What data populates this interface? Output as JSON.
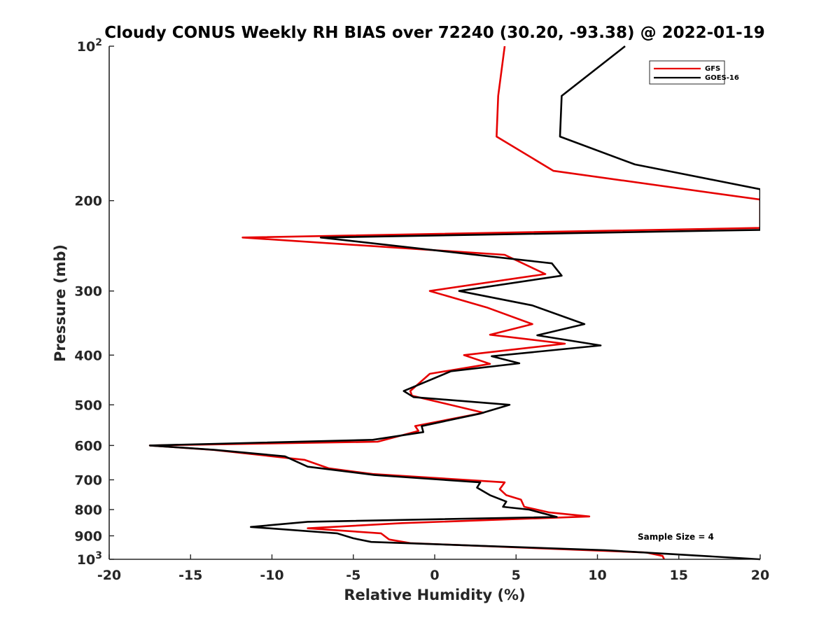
{
  "chart_data": {
    "type": "line",
    "title": "Cloudy CONUS Weekly RH BIAS over 72240 (30.20, -93.38) @ 2022-01-19",
    "xlabel": "Relative Humidity (%)",
    "ylabel": "Pressure (mb)",
    "xlim": [
      -20,
      20
    ],
    "ylim": [
      100,
      1000
    ],
    "yscale": "log",
    "y_reversed": true,
    "grid": false,
    "legend_position": "top-right",
    "x_ticks": [
      -20,
      -15,
      -10,
      -5,
      0,
      5,
      10,
      15,
      20
    ],
    "x_tick_labels": [
      "-20",
      "-15",
      "-10",
      "-5",
      "0",
      "5",
      "10",
      "15",
      "20"
    ],
    "y_ticks": [
      100,
      200,
      300,
      400,
      500,
      600,
      700,
      800,
      900,
      1000
    ],
    "y_tick_labels": [
      {
        "base": "10",
        "sup": "2"
      },
      {
        "base": "200",
        "sup": ""
      },
      {
        "base": "300",
        "sup": ""
      },
      {
        "base": "400",
        "sup": ""
      },
      {
        "base": "500",
        "sup": ""
      },
      {
        "base": "600",
        "sup": ""
      },
      {
        "base": "700",
        "sup": ""
      },
      {
        "base": "800",
        "sup": ""
      },
      {
        "base": "900",
        "sup": ""
      },
      {
        "base": "10",
        "sup": "3"
      }
    ],
    "series": [
      {
        "name": "GFS",
        "color": "#e60000",
        "points": [
          [
            4.3,
            100
          ],
          [
            3.9,
            125
          ],
          [
            3.8,
            150
          ],
          [
            7.3,
            175
          ],
          [
            20.0,
            199
          ],
          [
            20.0,
            201
          ],
          [
            20.0,
            226
          ],
          [
            -11.8,
            236
          ],
          [
            4.3,
            255
          ],
          [
            6.8,
            278
          ],
          [
            -0.3,
            300
          ],
          [
            3.2,
            323
          ],
          [
            6.0,
            348
          ],
          [
            3.4,
            365
          ],
          [
            8.0,
            380
          ],
          [
            1.8,
            400
          ],
          [
            3.4,
            416
          ],
          [
            -0.3,
            435
          ],
          [
            -1.5,
            470
          ],
          [
            -1.4,
            480
          ],
          [
            3.0,
            518
          ],
          [
            -1.2,
            550
          ],
          [
            -1.0,
            562
          ],
          [
            -3.5,
            590
          ],
          [
            -17.5,
            600
          ],
          [
            -13.6,
            612
          ],
          [
            -8.0,
            640
          ],
          [
            -6.5,
            665
          ],
          [
            -3.8,
            682
          ],
          [
            4.3,
            708
          ],
          [
            4.0,
            730
          ],
          [
            4.4,
            750
          ],
          [
            5.3,
            765
          ],
          [
            5.5,
            790
          ],
          [
            7.0,
            810
          ],
          [
            9.5,
            825
          ],
          [
            -2.0,
            850
          ],
          [
            -7.8,
            870
          ],
          [
            -3.3,
            890
          ],
          [
            -2.8,
            915
          ],
          [
            -1.5,
            930
          ],
          [
            13.0,
            970
          ],
          [
            14.0,
            985
          ],
          [
            14.1,
            1000
          ]
        ]
      },
      {
        "name": "GOES-16",
        "color": "#000000",
        "points": [
          [
            11.7,
            100
          ],
          [
            7.8,
            125
          ],
          [
            7.7,
            150
          ],
          [
            12.3,
            170
          ],
          [
            20.0,
            190
          ],
          [
            20.0,
            228
          ],
          [
            -7.0,
            236
          ],
          [
            7.2,
            265
          ],
          [
            7.8,
            280
          ],
          [
            1.5,
            300
          ],
          [
            6.0,
            320
          ],
          [
            9.2,
            348
          ],
          [
            6.3,
            366
          ],
          [
            10.2,
            383
          ],
          [
            3.5,
            402
          ],
          [
            5.2,
            415
          ],
          [
            1.0,
            430
          ],
          [
            -1.9,
            470
          ],
          [
            -1.3,
            483
          ],
          [
            4.6,
            500
          ],
          [
            2.8,
            520
          ],
          [
            -0.8,
            550
          ],
          [
            -0.7,
            565
          ],
          [
            -3.8,
            585
          ],
          [
            -17.5,
            600
          ],
          [
            -13.5,
            612
          ],
          [
            -9.2,
            630
          ],
          [
            -7.8,
            660
          ],
          [
            -3.7,
            685
          ],
          [
            2.8,
            708
          ],
          [
            2.6,
            725
          ],
          [
            3.4,
            750
          ],
          [
            4.4,
            772
          ],
          [
            4.2,
            790
          ],
          [
            5.8,
            800
          ],
          [
            7.5,
            827
          ],
          [
            -7.8,
            845
          ],
          [
            -11.3,
            865
          ],
          [
            -6.0,
            890
          ],
          [
            -5.0,
            910
          ],
          [
            -3.9,
            925
          ],
          [
            10.5,
            960
          ],
          [
            20.0,
            1000
          ]
        ]
      }
    ],
    "annotations": [
      {
        "text": "Sample Size = 4",
        "x": 12.5,
        "y": 905
      }
    ]
  }
}
